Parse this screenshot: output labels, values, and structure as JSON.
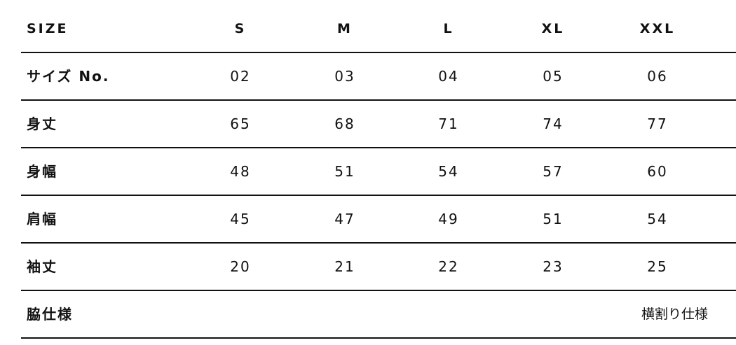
{
  "table": {
    "header": {
      "label": "SIZE",
      "sizes": [
        "S",
        "M",
        "L",
        "XL",
        "XXL"
      ]
    },
    "rows": [
      {
        "label": "サイズ No.",
        "values": [
          "02",
          "03",
          "04",
          "05",
          "06"
        ]
      },
      {
        "label": "身丈",
        "values": [
          "65",
          "68",
          "71",
          "74",
          "77"
        ]
      },
      {
        "label": "身幅",
        "values": [
          "48",
          "51",
          "54",
          "57",
          "60"
        ]
      },
      {
        "label": "肩幅",
        "values": [
          "45",
          "47",
          "49",
          "51",
          "54"
        ]
      },
      {
        "label": "袖丈",
        "values": [
          "20",
          "21",
          "22",
          "23",
          "25"
        ]
      }
    ],
    "side_row": {
      "label": "脇仕様",
      "value": "横割り仕様"
    }
  }
}
